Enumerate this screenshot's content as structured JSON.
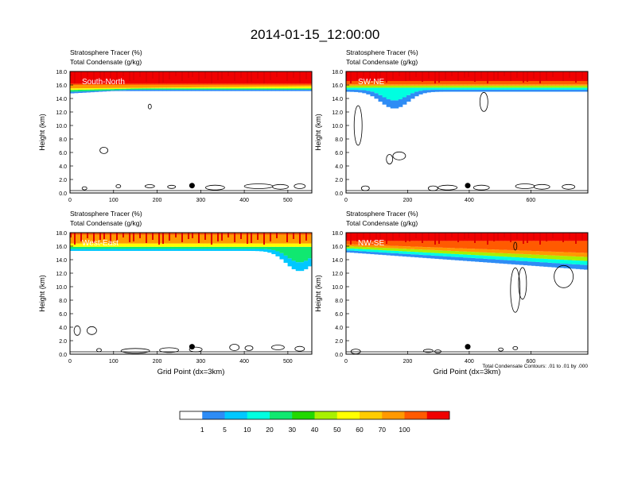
{
  "title": "2014-01-15_12:00:00",
  "panels": [
    {
      "label": "South-North",
      "header_line1": "Stratosphere Tracer   (%)",
      "header_line2": "Total Condensate   (g/kg)",
      "xticks": [
        "0",
        "100",
        "200",
        "300",
        "400",
        "500"
      ],
      "xtick_values": [
        0,
        100,
        200,
        300,
        400,
        500
      ],
      "xmax": 555,
      "marker_x": 280,
      "xlabel": ""
    },
    {
      "label": "SW-NE",
      "header_line1": "Stratosphere Tracer   (%)",
      "header_line2": "Total Condensate   (g/kg)",
      "xticks": [
        "0",
        "200",
        "400",
        "600"
      ],
      "xtick_values": [
        0,
        200,
        400,
        600
      ],
      "xmax": 785,
      "marker_x": 395,
      "xlabel": ""
    },
    {
      "label": "West-East",
      "header_line1": "Stratosphere Tracer   (%)",
      "header_line2": "Total Condensate   (g/kg)",
      "xticks": [
        "0",
        "100",
        "200",
        "300",
        "400",
        "500"
      ],
      "xtick_values": [
        0,
        100,
        200,
        300,
        400,
        500
      ],
      "xmax": 555,
      "marker_x": 280,
      "xlabel": "Grid Point (dx=3km)"
    },
    {
      "label": "NW-SE",
      "header_line1": "Stratosphere Tracer   (%)",
      "header_line2": "Total Condensate   (g/kg)",
      "xticks": [
        "0",
        "200",
        "400",
        "600"
      ],
      "xtick_values": [
        0,
        200,
        400,
        600
      ],
      "xmax": 785,
      "marker_x": 395,
      "xlabel": "Grid Point (dx=3km)",
      "footnote": "Total Condensate Contours: .01 to .01 by .000"
    }
  ],
  "y_axis": {
    "label": "Height (km)",
    "ticks": [
      "0.0",
      "2.0",
      "4.0",
      "6.0",
      "8.0",
      "10.0",
      "12.0",
      "14.0",
      "16.0",
      "18.0"
    ],
    "tick_values": [
      0,
      2,
      4,
      6,
      8,
      10,
      12,
      14,
      16,
      18
    ],
    "ylim": [
      0,
      18
    ]
  },
  "colorbar": {
    "labels": [
      "1",
      "5",
      "10",
      "20",
      "30",
      "40",
      "50",
      "60",
      "70",
      "100"
    ],
    "colors": [
      "#ffffff",
      "#2e8cf5",
      "#00c8ff",
      "#00ffe0",
      "#10e870",
      "#22d800",
      "#a8f000",
      "#ffff00",
      "#ffcc00",
      "#ff9900",
      "#ff5a00",
      "#f00000"
    ]
  },
  "chart_data": [
    {
      "type": "heatmap",
      "title": "South-North",
      "xlabel": "",
      "ylabel": "Height (km)",
      "xlim": [
        0,
        555
      ],
      "ylim": [
        0,
        18
      ],
      "note": "Stratosphere tracer >70% above ~16 km, sharp gradient 15-16 km; scattered total condensate contours below 2 km"
    },
    {
      "type": "heatmap",
      "title": "SW-NE",
      "xlabel": "",
      "ylabel": "Height (km)",
      "xlim": [
        0,
        785
      ],
      "ylim": [
        0,
        18
      ],
      "note": "Tracer intrusion to ~13 km near x=150; condensate contours near surface and at 5-6 km"
    },
    {
      "type": "heatmap",
      "title": "West-East",
      "xlabel": "Grid Point (dx=3km)",
      "ylabel": "Height (km)",
      "xlim": [
        0,
        555
      ],
      "ylim": [
        0,
        18
      ],
      "note": "Tracer folds down to ~12.5 km near x=520"
    },
    {
      "type": "heatmap",
      "title": "NW-SE",
      "xlabel": "Grid Point (dx=3km)",
      "ylabel": "Height (km)",
      "xlim": [
        0,
        785
      ],
      "ylim": [
        0,
        18
      ],
      "note": "Tracer sloping to ~12.5 km on right; tall condensate contours at x~550-580 and x~700"
    }
  ]
}
